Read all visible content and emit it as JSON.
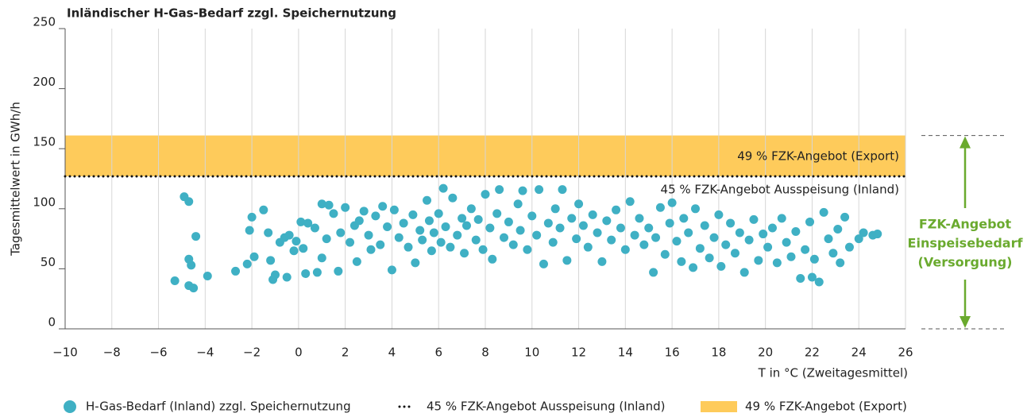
{
  "chart_data": {
    "type": "scatter",
    "title": "Inländischer H-Gas-Bedarf zzgl. Speichernutzung",
    "xlabel": "T in °C (Zweitagesmittel)",
    "ylabel": "Tagesmittelwert in GWh/h",
    "xlim": [
      -10,
      26
    ],
    "ylim": [
      0,
      250
    ],
    "xticks": [
      {
        "value": -10,
        "label": "−10"
      },
      {
        "value": -8,
        "label": "−8"
      },
      {
        "value": -6,
        "label": "−6"
      },
      {
        "value": -4,
        "label": "−4"
      },
      {
        "value": -2,
        "label": "−2"
      },
      0,
      2,
      4,
      6,
      8,
      10,
      12,
      14,
      16,
      18,
      20,
      22,
      24,
      26
    ],
    "yticks": [
      0,
      50,
      100,
      150,
      200,
      250
    ],
    "grid": true,
    "band": {
      "label": "49 % FZK-Angebot (Export)",
      "from": 127,
      "to": 161,
      "color": "#fecb5b"
    },
    "reference_line": {
      "label": "45 % FZK-Angebot Ausspeisung (Inland)",
      "value": 127,
      "color": "#111111"
    },
    "annotation": {
      "lines": [
        "FZK-Angebot",
        "Einspeisebedarf",
        "(Versorgung)"
      ],
      "color": "#6aaa2e"
    },
    "series": [
      {
        "name": "H-Gas-Bedarf (Inland) zzgl. Speichernutzung",
        "color": "#3fb0c4",
        "x": [
          -5.3,
          -4.9,
          -4.7,
          -4.7,
          -4.6,
          -4.7,
          -4.5,
          -4.4,
          -3.9,
          -2.7,
          -2.2,
          -2.1,
          -2,
          -1.9,
          -1.5,
          -1.3,
          -1.2,
          -1.1,
          -1,
          -0.8,
          -0.6,
          -0.4,
          -0.5,
          -0.2,
          -0.1,
          0.1,
          0.2,
          0.3,
          0.4,
          0.7,
          0.8,
          1,
          1,
          1.2,
          1.3,
          1.5,
          1.7,
          1.8,
          2,
          2.2,
          2.4,
          2.5,
          2.6,
          2.8,
          3,
          3.1,
          3.3,
          3.5,
          3.6,
          3.8,
          4,
          4.1,
          4.3,
          4.5,
          4.7,
          4.9,
          5,
          5.2,
          5.3,
          5.5,
          5.6,
          5.7,
          5.8,
          6,
          6.1,
          6.2,
          6.3,
          6.5,
          6.6,
          6.8,
          7,
          7.1,
          7.2,
          7.4,
          7.6,
          7.7,
          7.9,
          8,
          8.2,
          8.3,
          8.5,
          8.6,
          8.8,
          9,
          9.2,
          9.4,
          9.5,
          9.6,
          9.8,
          10,
          10.2,
          10.3,
          10.5,
          10.7,
          10.9,
          11,
          11.2,
          11.3,
          11.5,
          11.7,
          11.9,
          12,
          12.2,
          12.4,
          12.6,
          12.8,
          13,
          13.2,
          13.4,
          13.6,
          13.8,
          14,
          14.2,
          14.4,
          14.6,
          14.8,
          15,
          15.2,
          15.3,
          15.5,
          15.7,
          15.9,
          16,
          16.2,
          16.4,
          16.5,
          16.7,
          16.9,
          17,
          17.2,
          17.4,
          17.6,
          17.8,
          18,
          18.1,
          18.3,
          18.5,
          18.7,
          18.9,
          19.1,
          19.3,
          19.5,
          19.7,
          19.9,
          20.1,
          20.3,
          20.5,
          20.7,
          20.9,
          21.1,
          21.3,
          21.5,
          21.7,
          21.9,
          22,
          22.1,
          22.3,
          22.5,
          22.7,
          22.9,
          23.1,
          23.2,
          23.4,
          23.6,
          24,
          24.2,
          24.6,
          24.8
        ],
        "y": [
          40,
          110,
          106,
          58,
          53,
          36,
          34,
          77,
          44,
          48,
          54,
          82,
          93,
          60,
          99,
          80,
          57,
          41,
          45,
          72,
          76,
          78,
          43,
          65,
          73,
          89,
          67,
          46,
          88,
          84,
          47,
          104,
          59,
          75,
          103,
          96,
          48,
          80,
          101,
          72,
          86,
          56,
          90,
          98,
          78,
          66,
          94,
          70,
          102,
          85,
          49,
          99,
          76,
          88,
          68,
          95,
          55,
          82,
          74,
          107,
          90,
          65,
          80,
          96,
          72,
          117,
          85,
          68,
          109,
          78,
          92,
          63,
          86,
          100,
          74,
          91,
          66,
          112,
          84,
          58,
          96,
          116,
          76,
          89,
          70,
          104,
          82,
          115,
          66,
          94,
          78,
          116,
          54,
          88,
          72,
          100,
          84,
          116,
          57,
          92,
          75,
          104,
          86,
          68,
          95,
          80,
          56,
          90,
          74,
          99,
          84,
          66,
          106,
          78,
          92,
          70,
          84,
          47,
          76,
          101,
          62,
          88,
          105,
          73,
          56,
          92,
          80,
          51,
          100,
          67,
          86,
          59,
          76,
          95,
          52,
          70,
          88,
          63,
          80,
          47,
          74,
          91,
          57,
          79,
          68,
          84,
          55,
          92,
          72,
          60,
          81,
          42,
          66,
          89,
          43,
          58,
          39,
          97,
          75,
          63,
          83,
          55,
          93,
          68,
          75,
          80,
          78,
          79
        ]
      }
    ]
  }
}
